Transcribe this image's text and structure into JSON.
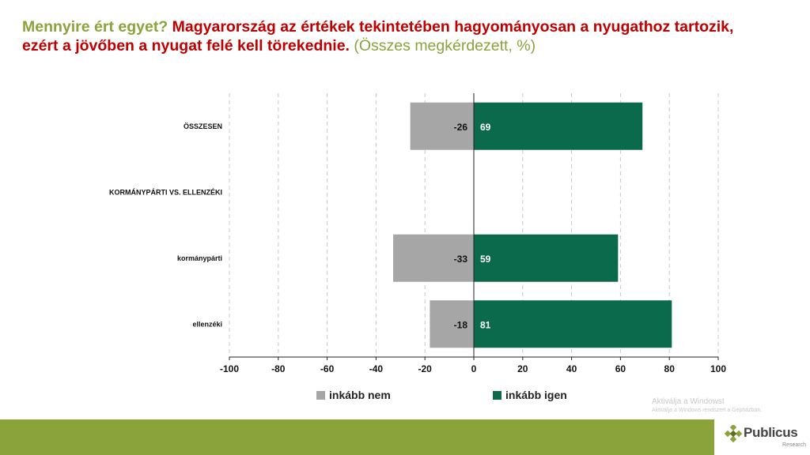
{
  "title": {
    "question": "Mennyire ért egyet?",
    "statement": "Magyarország az értékek tekintetében hagyományosan a nyugathoz tartozik, ezért a jövőben a nyugat felé kell törekednie.",
    "scope": "(Összes megkérdezett, %)"
  },
  "colors": {
    "question": "#8aa33b",
    "statement": "#c00000",
    "negative": "#a6a6a6",
    "positive": "#0b6a4c",
    "footer": "#8aa33b"
  },
  "chart_data": {
    "type": "bar",
    "orientation": "horizontal",
    "stacked": "diverging",
    "categories": [
      "ÖSSZESEN",
      "KORMÁNYPÁRTI VS. ELLENZÉKI",
      "kormánypárti",
      "ellenzéki"
    ],
    "category_bold": [
      true,
      true,
      false,
      false
    ],
    "series": [
      {
        "name": "inkább nem",
        "values": [
          -26,
          null,
          -33,
          -18
        ],
        "labels": [
          "-26",
          "",
          "-33",
          "-18"
        ]
      },
      {
        "name": "inkább igen",
        "values": [
          69,
          null,
          59,
          81
        ],
        "labels": [
          "69",
          "",
          "59",
          "81"
        ]
      }
    ],
    "xlim": [
      -100,
      100
    ],
    "xticks": [
      -100,
      -80,
      -60,
      -40,
      -20,
      0,
      20,
      40,
      60,
      80,
      100
    ],
    "xtick_labels": [
      "-100",
      "-80",
      "-60",
      "-40",
      "-20",
      "0",
      "20",
      "40",
      "60",
      "80",
      "100"
    ],
    "grid": "vertical dashed",
    "legend_position": "bottom"
  },
  "legend": {
    "items": [
      "inkább nem",
      "inkább igen"
    ]
  },
  "watermark": {
    "line1": "Aktiválja a Windowst",
    "line2": "Aktiválja a Windows rendszert a Gépházban."
  },
  "logo": {
    "name": "Publicus",
    "sub": "Research"
  }
}
